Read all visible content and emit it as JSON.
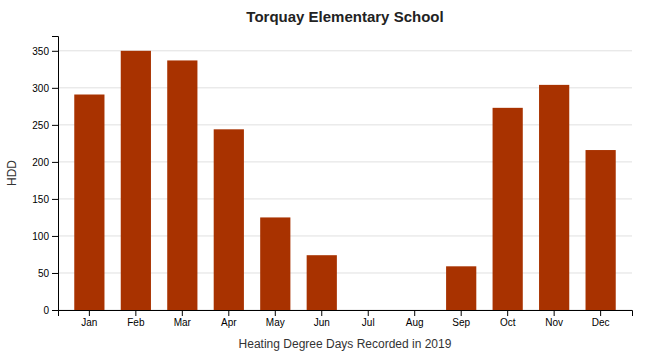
{
  "chart_data": {
    "type": "bar",
    "title": "Torquay Elementary School",
    "xlabel": "Heating Degree Days Recorded in 2019",
    "ylabel": "HDD",
    "categories": [
      "Jan",
      "Feb",
      "Mar",
      "Apr",
      "May",
      "Jun",
      "Jul",
      "Aug",
      "Sep",
      "Oct",
      "Nov",
      "Dec"
    ],
    "values": [
      291,
      350,
      337,
      244,
      125,
      74,
      0,
      0,
      59,
      273,
      304,
      216
    ],
    "color": "#a83200",
    "ylim": [
      0,
      370
    ],
    "yticks": [
      0,
      50,
      100,
      150,
      200,
      250,
      300,
      350
    ],
    "grid": true
  }
}
